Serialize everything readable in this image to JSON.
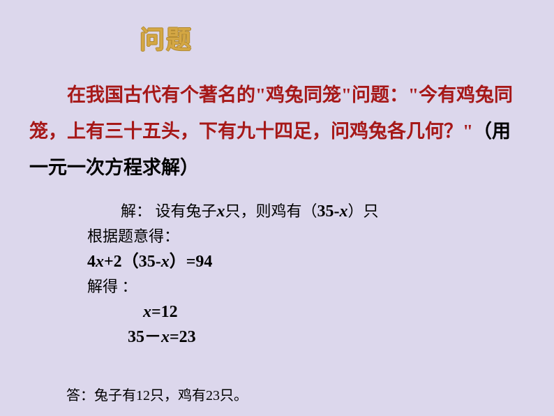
{
  "title": "问题",
  "problem_part1": "在我国古代有个著名的\"鸡兔同笼\"问题：\"今有鸡兔同笼，上有三十五头，下有九十四足，问鸡兔各几何？\"",
  "problem_part2": "（用一元一次方程求解）",
  "sol_line1_a": "解：  设有兔子",
  "sol_line1_b": "只，则鸡有（",
  "sol_line1_c": "）只",
  "sol_line2": "根据题意得：",
  "sol_line3_a": "4",
  "sol_line3_b": "+2（35-",
  "sol_line3_c": "）=94",
  "sol_line4": "解得 ：",
  "sol_line5_a": "=12",
  "sol_line6_a": "35－",
  "sol_line6_b": "=23",
  "answer": "答：兔子有12只，鸡有23只。",
  "var_x": "x",
  "var_35mx": "35-x",
  "colors": {
    "background": "#dcd7ec",
    "title": "#d4a744",
    "problem": "#a61818",
    "text": "#000000"
  },
  "fonts": {
    "title_size": 36,
    "problem_size": 27,
    "solution_size": 22,
    "answer_size": 20
  }
}
